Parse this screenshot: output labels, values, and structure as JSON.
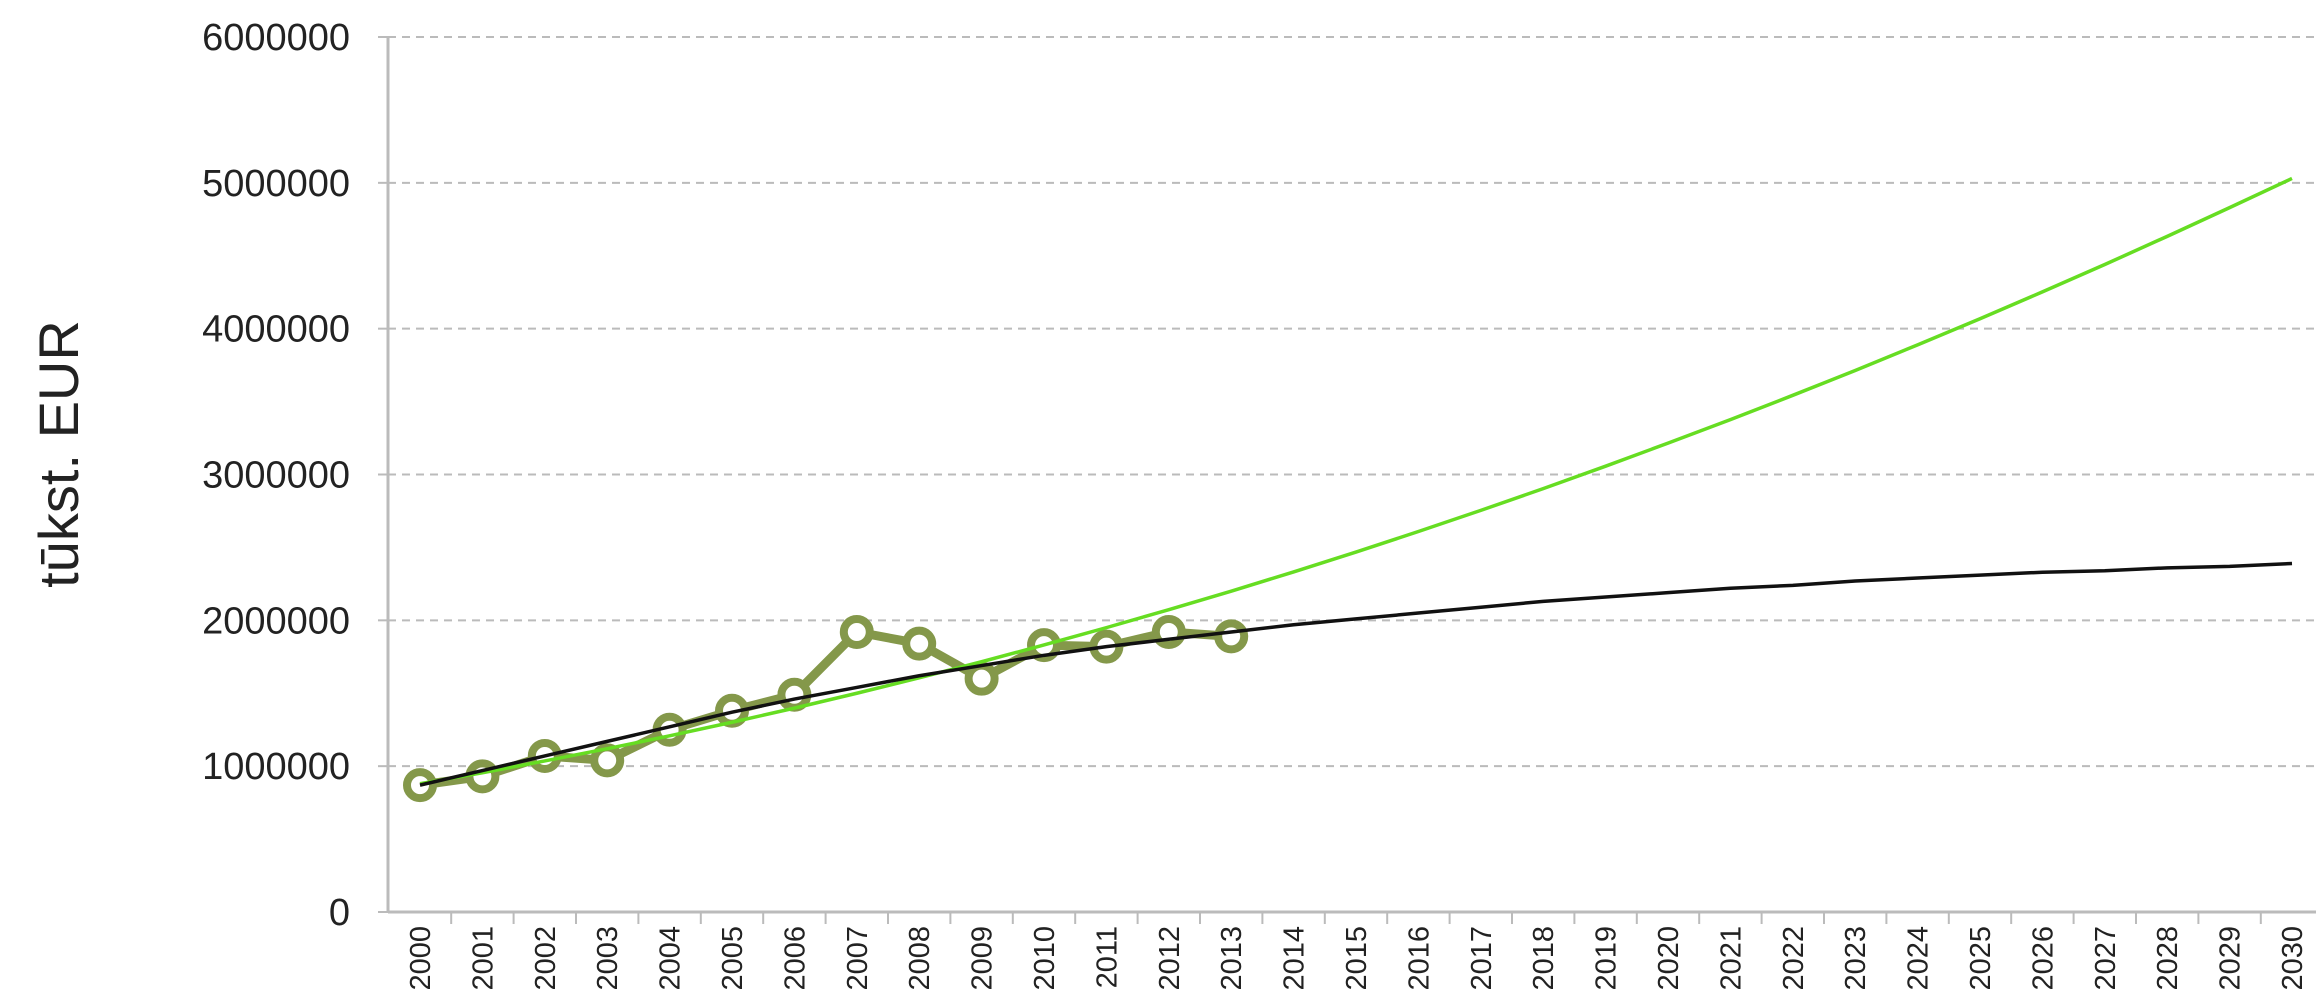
{
  "chart_data": {
    "type": "line",
    "y_label": "tūkst. EUR",
    "categories": [
      "2000",
      "2001",
      "2002",
      "2003",
      "2004",
      "2005",
      "2006",
      "2007",
      "2008",
      "2009",
      "2010",
      "2011",
      "2012",
      "2013",
      "2014",
      "2015",
      "2016",
      "2017",
      "2018",
      "2019",
      "2020",
      "2021",
      "2022",
      "2023",
      "2024",
      "2025",
      "2026",
      "2027",
      "2028",
      "2029",
      "2030"
    ],
    "series": [
      {
        "color": "#84984a",
        "markers": true,
        "values": [
          870000,
          930000,
          1070000,
          1040000,
          1250000,
          1380000,
          1490000,
          1920000,
          1840000,
          1600000,
          1830000,
          1820000,
          1920000,
          1890000,
          null,
          null,
          null,
          null,
          null,
          null,
          null,
          null,
          null,
          null,
          null,
          null,
          null,
          null,
          null,
          null,
          null
        ]
      },
      {
        "color": "#66dd22",
        "markers": false,
        "values": [
          880000,
          955000,
          1036000,
          1120000,
          1208000,
          1301000,
          1398000,
          1500000,
          1606000,
          1716000,
          1831000,
          1950000,
          2073000,
          2200000,
          2332000,
          2468000,
          2609000,
          2754000,
          2903000,
          3057000,
          3215000,
          3376000,
          3543000,
          3713000,
          3889000,
          4068000,
          4252000,
          4440000,
          4633000,
          4830000,
          5030000
        ]
      },
      {
        "color": "#111111",
        "markers": false,
        "values": [
          870000,
          970000,
          1070000,
          1170000,
          1270000,
          1370000,
          1460000,
          1540000,
          1620000,
          1690000,
          1760000,
          1820000,
          1870000,
          1920000,
          1970000,
          2010000,
          2050000,
          2090000,
          2130000,
          2160000,
          2190000,
          2220000,
          2240000,
          2270000,
          2290000,
          2310000,
          2330000,
          2340000,
          2360000,
          2370000,
          2390000
        ]
      }
    ],
    "ylim": [
      0,
      6000000
    ],
    "yticks": [
      0,
      1000000,
      2000000,
      3000000,
      4000000,
      5000000,
      6000000
    ],
    "grid": true
  }
}
